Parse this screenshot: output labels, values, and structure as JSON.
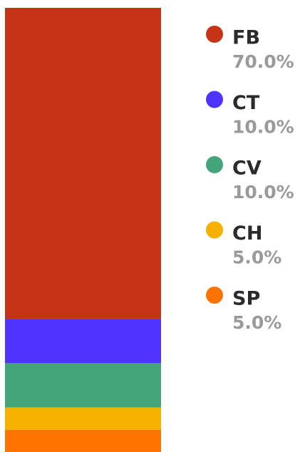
{
  "chart_data": {
    "type": "stacked-bar",
    "categories": [
      "FB",
      "CT",
      "CV",
      "CH",
      "SP"
    ],
    "values": [
      70,
      10,
      10,
      5,
      5
    ],
    "value_labels": [
      "70.0%",
      "10.0%",
      "10.0%",
      "5.0%",
      "5.0%"
    ],
    "colors": [
      "#c73316",
      "#4f33ff",
      "#45a57a",
      "#f5b000",
      "#ff7300"
    ]
  }
}
